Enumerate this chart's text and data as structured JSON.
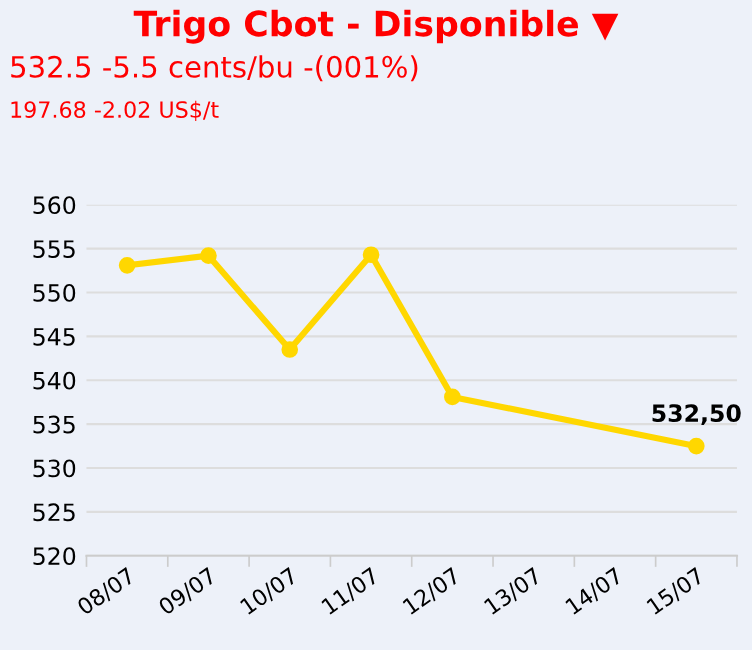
{
  "chart_data": {
    "type": "line",
    "title": "Trigo Cbot - Disponible ▼",
    "subtitle": "532.5 -5.5 cents/bu -(001%)",
    "annotations": [
      "197.68 -2.02 US$/t"
    ],
    "categories": [
      "08/07",
      "09/07",
      "10/07",
      "11/07",
      "12/07",
      "13/07",
      "14/07",
      "15/07"
    ],
    "series": [
      {
        "color": "#ffd700",
        "values": [
          553.1,
          554.2,
          543.5,
          554.3,
          538.1,
          null,
          null,
          532.5
        ],
        "value_labels": [
          null,
          null,
          null,
          null,
          null,
          null,
          null,
          "532,50"
        ]
      }
    ],
    "ylim": [
      520,
      560
    ],
    "yticks": [
      520,
      525,
      530,
      535,
      540,
      545,
      550,
      555,
      560
    ],
    "grid": "y",
    "marker": "circle",
    "line_style": "solid"
  }
}
